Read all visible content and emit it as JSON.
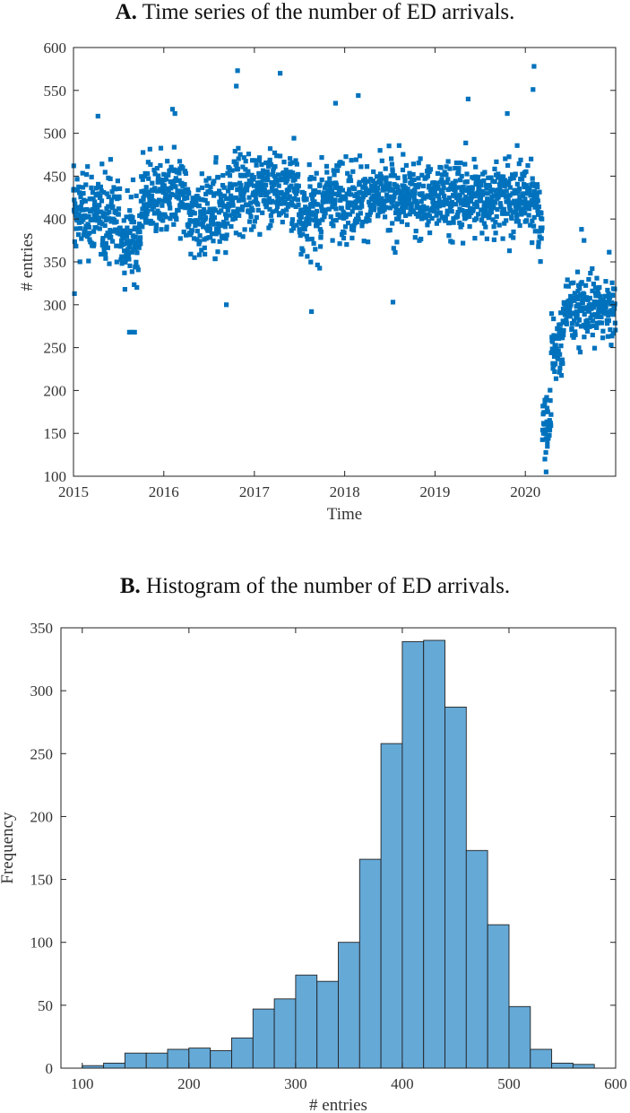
{
  "chart_data": [
    {
      "type": "scatter",
      "title_label": "A.",
      "title_text": "Time series of the number of ED arrivals.",
      "xlabel": "Time",
      "ylabel": "# entries",
      "xlim": [
        "2015-01-01",
        "2020-12-31"
      ],
      "ylim": [
        100,
        600
      ],
      "x_ticks": [
        "2015",
        "2016",
        "2017",
        "2018",
        "2019",
        "2020"
      ],
      "y_ticks": [
        100,
        150,
        200,
        250,
        300,
        350,
        400,
        450,
        500,
        550,
        600
      ],
      "grid": false,
      "marker": "square",
      "color": "#0072BD",
      "segments": [
        {
          "from": "2015-01-01",
          "to": "2015-07-10",
          "mean": 405,
          "spread": 38
        },
        {
          "from": "2015-07-10",
          "to": "2015-09-30",
          "mean": 375,
          "spread": 42
        },
        {
          "from": "2015-09-30",
          "to": "2016-03-31",
          "mean": 425,
          "spread": 36
        },
        {
          "from": "2016-03-31",
          "to": "2016-09-15",
          "mean": 405,
          "spread": 38
        },
        {
          "from": "2016-09-15",
          "to": "2017-06-30",
          "mean": 435,
          "spread": 36
        },
        {
          "from": "2017-06-30",
          "to": "2017-09-30",
          "mean": 405,
          "spread": 40
        },
        {
          "from": "2017-09-30",
          "to": "2020-02-20",
          "mean": 425,
          "spread": 34
        },
        {
          "from": "2020-02-20",
          "to": "2020-03-10",
          "mean": 400,
          "spread": 40
        },
        {
          "from": "2020-03-10",
          "to": "2020-04-15",
          "mean": 165,
          "spread": 32
        },
        {
          "from": "2020-04-15",
          "to": "2020-06-01",
          "mean": 250,
          "spread": 32
        },
        {
          "from": "2020-06-01",
          "to": "2020-12-31",
          "mean": 295,
          "spread": 30
        }
      ],
      "highlighted_points": [
        {
          "x": "2015-01-02",
          "y": 462
        },
        {
          "x": "2015-01-05",
          "y": 313
        },
        {
          "x": "2015-04-10",
          "y": 520
        },
        {
          "x": "2015-08-15",
          "y": 268
        },
        {
          "x": "2015-08-25",
          "y": 268
        },
        {
          "x": "2015-09-05",
          "y": 268
        },
        {
          "x": "2016-02-05",
          "y": 528
        },
        {
          "x": "2016-02-15",
          "y": 523
        },
        {
          "x": "2016-09-10",
          "y": 300
        },
        {
          "x": "2016-10-25",
          "y": 573
        },
        {
          "x": "2016-10-20",
          "y": 555
        },
        {
          "x": "2017-04-15",
          "y": 570
        },
        {
          "x": "2017-08-20",
          "y": 292
        },
        {
          "x": "2017-11-25",
          "y": 535
        },
        {
          "x": "2018-02-25",
          "y": 544
        },
        {
          "x": "2018-07-15",
          "y": 303
        },
        {
          "x": "2019-05-15",
          "y": 540
        },
        {
          "x": "2019-10-20",
          "y": 523
        },
        {
          "x": "2020-02-05",
          "y": 578
        },
        {
          "x": "2020-02-01",
          "y": 551
        },
        {
          "x": "2020-03-20",
          "y": 120
        },
        {
          "x": "2020-03-25",
          "y": 105
        },
        {
          "x": "2020-03-30",
          "y": 140
        },
        {
          "x": "2020-08-15",
          "y": 388
        },
        {
          "x": "2020-08-25",
          "y": 375
        }
      ]
    },
    {
      "type": "bar",
      "subtype": "histogram",
      "title_label": "B.",
      "title_text": "Histogram of the number of ED arrivals.",
      "xlabel": "# entries",
      "ylabel": "Frequency",
      "xlim": [
        80,
        600
      ],
      "ylim": [
        0,
        350
      ],
      "x_ticks": [
        100,
        200,
        300,
        400,
        500,
        600
      ],
      "y_ticks": [
        0,
        50,
        100,
        150,
        200,
        250,
        300,
        350
      ],
      "grid": false,
      "bin_edges": [
        100,
        120,
        140,
        160,
        180,
        200,
        220,
        240,
        260,
        280,
        300,
        320,
        340,
        360,
        380,
        400,
        420,
        440,
        460,
        480,
        500,
        520,
        540,
        560,
        580
      ],
      "values": [
        2,
        4,
        12,
        12,
        15,
        16,
        14,
        24,
        47,
        55,
        74,
        69,
        100,
        166,
        258,
        339,
        340,
        287,
        173,
        114,
        49,
        15,
        4,
        3
      ],
      "bar_color": "#65A9D7",
      "edge_color": "#222222"
    }
  ]
}
